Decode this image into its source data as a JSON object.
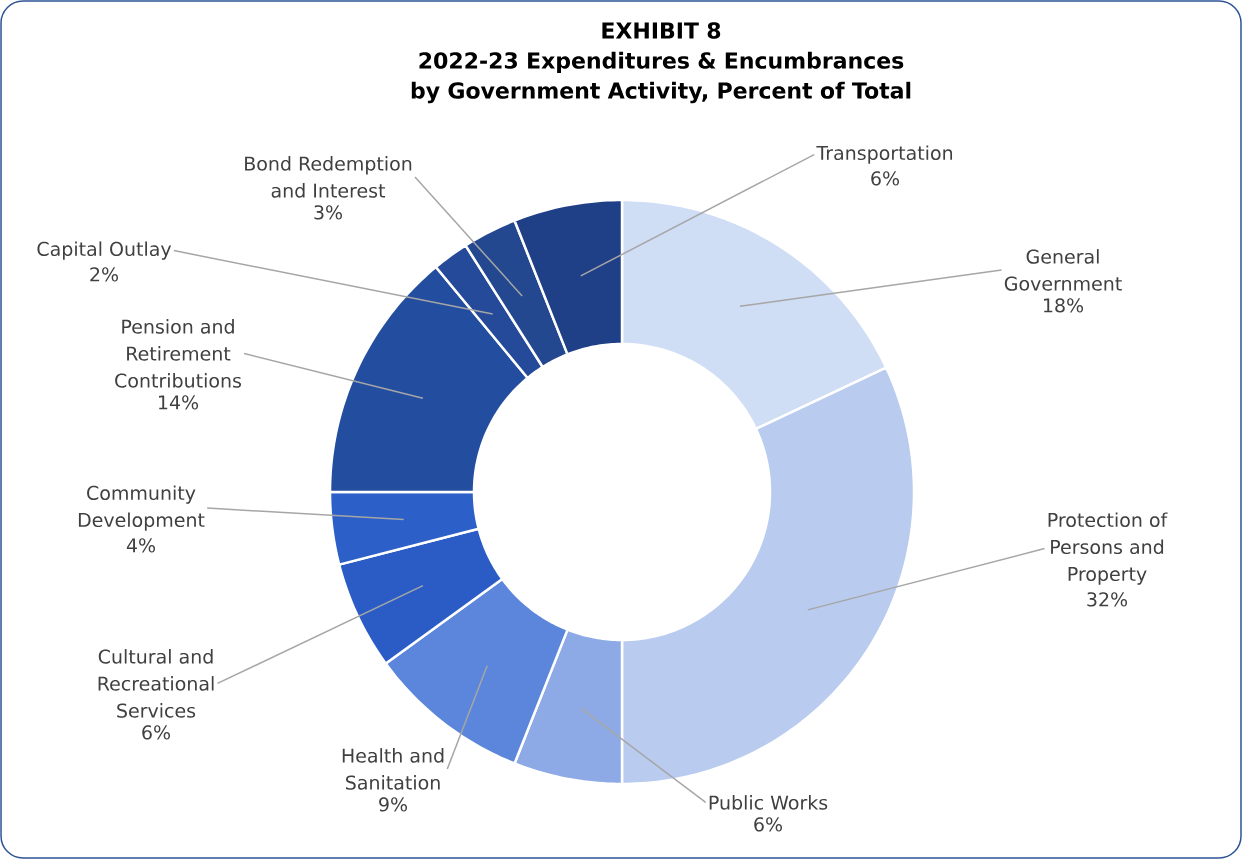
{
  "chart_data": {
    "type": "donut",
    "title": "EXHIBIT 8",
    "subtitle": "2022-23 Expenditures & Encumbrances by Government Activity, Percent of Total",
    "categories": [
      "General Government",
      "Protection of Persons and Property",
      "Public Works",
      "Health and Sanitation",
      "Cultural and Recreational Services",
      "Community Development",
      "Pension and Retirement Contributions",
      "Capital Outlay",
      "Bond Redemption and Interest",
      "Transportation"
    ],
    "values": [
      18,
      32,
      6,
      9,
      6,
      4,
      14,
      2,
      3,
      6
    ],
    "value_labels": [
      "18%",
      "32%",
      "6%",
      "9%",
      "6%",
      "4%",
      "14%",
      "2%",
      "3%",
      "6%"
    ],
    "colors": [
      "#cfddf5",
      "#b9cbef",
      "#8eaae6",
      "#5b86dc",
      "#2b5cc6",
      "#2d5fc8",
      "#234d9f",
      "#244a99",
      "#23488f",
      "#1f3f87"
    ]
  }
}
